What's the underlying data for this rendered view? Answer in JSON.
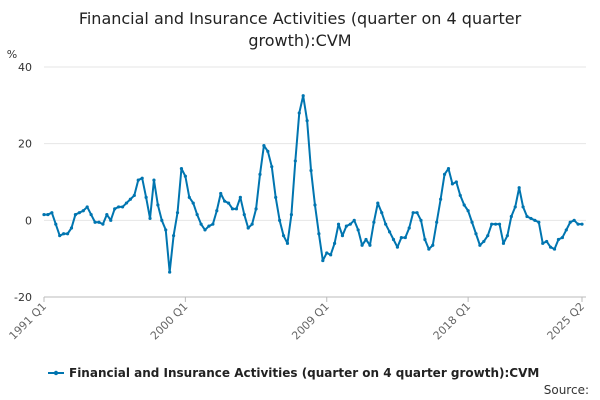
{
  "chart_data": {
    "type": "line",
    "title_lines": [
      "Financial and Insurance Activities (quarter on 4 quarter",
      "growth):CVM"
    ],
    "ylabel": "%",
    "ylim": [
      -20,
      40
    ],
    "yticks": [
      "40",
      "20",
      "0",
      "-20"
    ],
    "ytick_values": [
      40,
      20,
      0,
      -20
    ],
    "grid": true,
    "xtick_labels": [
      {
        "label": "1991 Q1",
        "index": 0
      },
      {
        "label": "2000 Q1",
        "index": 36
      },
      {
        "label": "2009 Q1",
        "index": 72
      },
      {
        "label": "2018 Q1",
        "index": 108
      },
      {
        "label": "2025 Q2",
        "index": 137
      }
    ],
    "series": [
      {
        "name": "Financial and Insurance Activities (quarter on 4 quarter growth):CVM",
        "color": "#0075b0",
        "values": [
          1.5,
          1.5,
          2,
          -1,
          -4,
          -3.5,
          -3.5,
          -2,
          1.5,
          2,
          2.5,
          3.5,
          1.5,
          -0.5,
          -0.5,
          -1,
          1.5,
          0,
          3,
          3.5,
          3.5,
          4.5,
          5.5,
          6.5,
          10.5,
          11,
          6,
          0.5,
          10.5,
          4,
          0,
          -2.5,
          -13.5,
          -4,
          2,
          13.5,
          11.5,
          6,
          4.5,
          1.5,
          -1,
          -2.5,
          -1.5,
          -1,
          2.5,
          7,
          5,
          4.5,
          3,
          3,
          6,
          1.5,
          -2,
          -1,
          3,
          12,
          19.5,
          18,
          14,
          6,
          0,
          -4,
          -6,
          1.5,
          15.5,
          28,
          32.5,
          26,
          13,
          4,
          -3.5,
          -10.5,
          -8.5,
          -9,
          -6,
          -1,
          -4,
          -1.5,
          -1,
          0,
          -2.5,
          -6.5,
          -5,
          -6.5,
          -0.5,
          4.5,
          2,
          -1,
          -3,
          -5,
          -7,
          -4.5,
          -4.5,
          -2,
          2,
          2,
          0,
          -5,
          -7.5,
          -6.5,
          -0.5,
          5.5,
          12,
          13.5,
          9.5,
          10,
          6.5,
          4,
          2.5,
          -0.5,
          -3.5,
          -6.5,
          -5.5,
          -4,
          -1,
          -1,
          -1,
          -6,
          -4,
          1,
          3.5,
          8.5,
          3.5,
          1,
          0.5,
          0,
          -0.5,
          -6,
          -5.5,
          -7,
          -7.5,
          -5,
          -4.5,
          -2.5,
          -0.5,
          0,
          -1,
          -1
        ]
      }
    ]
  },
  "legend": {
    "label": "Financial and Insurance Activities (quarter on 4 quarter growth):CVM",
    "color": "#0075b0"
  },
  "source_label": "Source:"
}
